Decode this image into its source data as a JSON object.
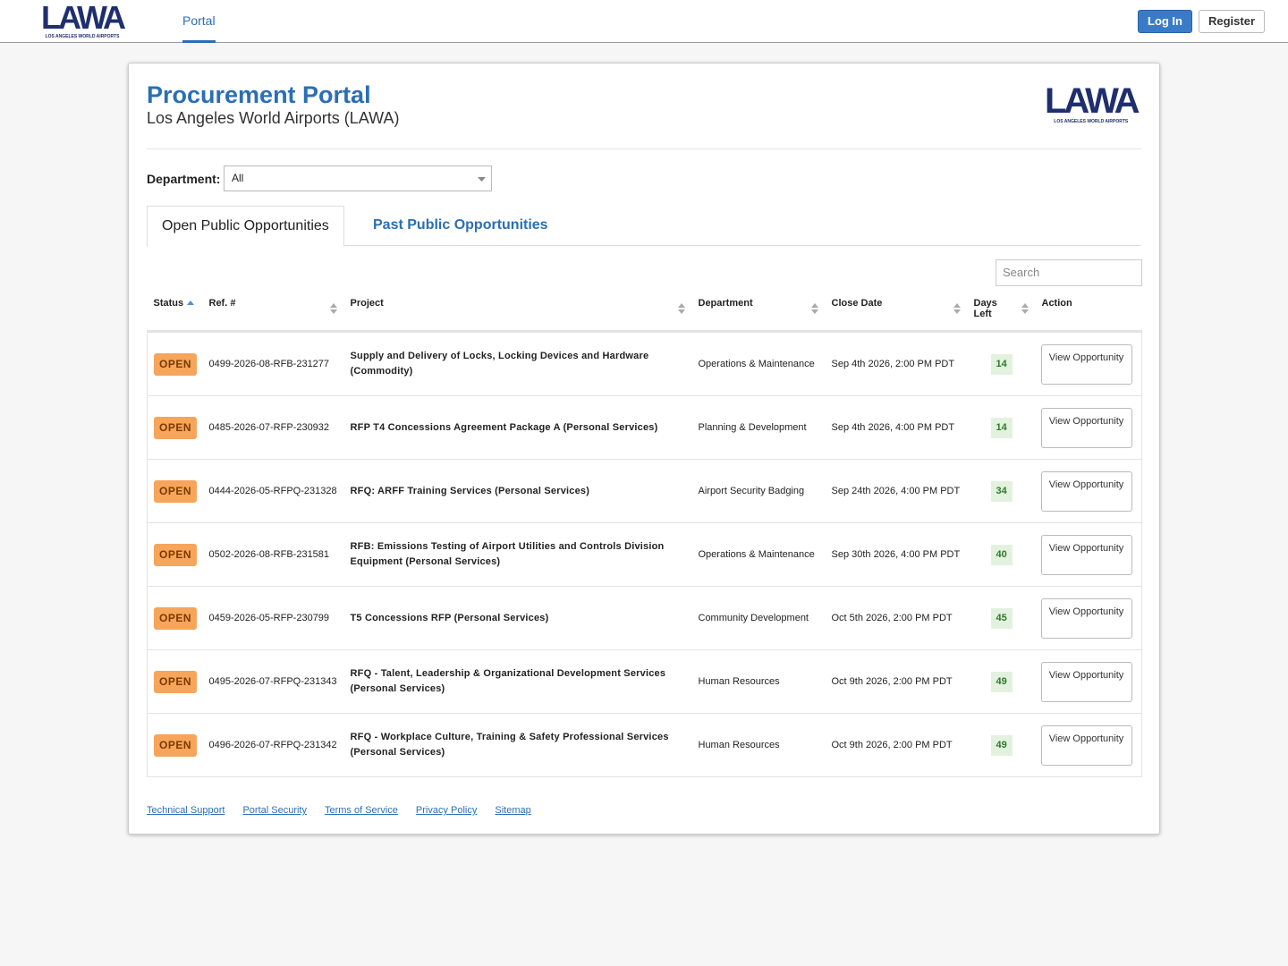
{
  "header": {
    "logo": {
      "name": "LAWA",
      "tagline": "LOS ANGELES WORLD AIRPORTS"
    },
    "nav": [
      "Portal"
    ],
    "buttons": [
      "Log In",
      "Register"
    ]
  },
  "portal": {
    "title": "Procurement Portal",
    "subtitle": "Los Angeles World Airports (LAWA)",
    "department_filter": {
      "label": "Department:",
      "value": "All"
    },
    "tabs": [
      "Open Public Opportunities",
      "Past Public Opportunities"
    ],
    "search_placeholder": "Search"
  },
  "table": {
    "headers": [
      "Status",
      "Ref. #",
      "Project",
      "Department",
      "Close Date",
      "Days Left",
      "Action"
    ],
    "rows": [
      {
        "status": "OPEN",
        "ref": "0499-2026-08-RFB-231277",
        "project": "Supply and Delivery of Locks, Locking Devices and Hardware (Commodity)",
        "department": "Operations & Maintenance",
        "close_date": "Sep 4th 2026, 2:00 PM PDT",
        "days_left": 14,
        "action": "View Opportunity"
      },
      {
        "status": "OPEN",
        "ref": "0485-2026-07-RFP-230932",
        "project": "RFP T4 Concessions Agreement Package A (Personal Services)",
        "department": "Planning & Development",
        "close_date": "Sep 4th 2026, 4:00 PM PDT",
        "days_left": 14,
        "action": "View Opportunity"
      },
      {
        "status": "OPEN",
        "ref": "0444-2026-05-RFPQ-231328",
        "project": "RFQ: ARFF Training Services (Personal Services)",
        "department": "Airport Security Badging",
        "close_date": "Sep 24th 2026, 4:00 PM PDT",
        "days_left": 34,
        "action": "View Opportunity"
      },
      {
        "status": "OPEN",
        "ref": "0502-2026-08-RFB-231581",
        "project": "RFB: Emissions Testing of Airport Utilities and Controls Division Equipment (Personal Services)",
        "department": "Operations & Maintenance",
        "close_date": "Sep 30th 2026, 4:00 PM PDT",
        "days_left": 40,
        "action": "View Opportunity"
      },
      {
        "status": "OPEN",
        "ref": "0459-2026-05-RFP-230799",
        "project": "T5 Concessions RFP (Personal Services)",
        "department": "Community Development",
        "close_date": "Oct 5th 2026, 2:00 PM PDT",
        "days_left": 45,
        "action": "View Opportunity"
      },
      {
        "status": "OPEN",
        "ref": "0495-2026-07-RFPQ-231343",
        "project": "RFQ - Talent, Leadership & Organizational Development Services (Personal Services)",
        "department": "Human Resources",
        "close_date": "Oct 9th 2026, 2:00 PM PDT",
        "days_left": 49,
        "action": "View Opportunity"
      },
      {
        "status": "OPEN",
        "ref": "0496-2026-07-RFPQ-231342",
        "project": "RFQ - Workplace Culture, Training & Safety Professional Services (Personal Services)",
        "department": "Human Resources",
        "close_date": "Oct 9th 2026, 2:00 PM PDT",
        "days_left": 49,
        "action": "View Opportunity"
      }
    ]
  },
  "footer": {
    "links": [
      "Technical Support",
      "Portal Security",
      "Terms of Service",
      "Privacy Policy",
      "Sitemap"
    ]
  }
}
